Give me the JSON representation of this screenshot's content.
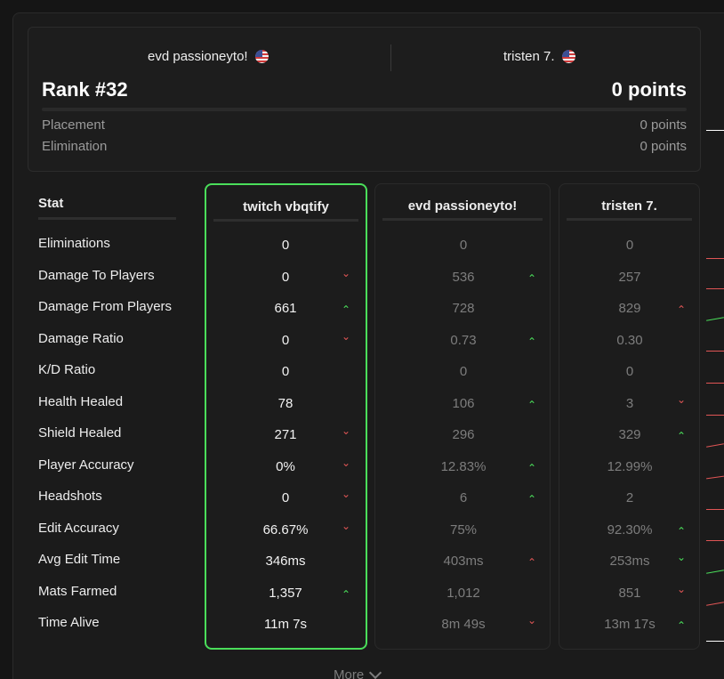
{
  "team": {
    "player1": "evd passioneyto!",
    "player2": "tristen 7.",
    "rank": "Rank #32",
    "points": "0 points",
    "placement_label": "Placement",
    "placement_value": "0 points",
    "elimination_label": "Elimination",
    "elimination_value": "0 points"
  },
  "table": {
    "stat_header": "Stat",
    "stats": [
      "Eliminations",
      "Damage To Players",
      "Damage From Players",
      "Damage Ratio",
      "K/D Ratio",
      "Health Healed",
      "Shield Healed",
      "Player Accuracy",
      "Headshots",
      "Edit Accuracy",
      "Avg Edit Time",
      "Mats Farmed",
      "Time Alive"
    ],
    "columns": [
      {
        "name": "twitch vbqtify",
        "values": [
          "0",
          "0",
          "661",
          "0",
          "0",
          "78",
          "271",
          "0%",
          "0",
          "66.67%",
          "346ms",
          "1,357",
          "11m 7s"
        ],
        "arrows": [
          "",
          "down",
          "up",
          "down",
          "",
          "",
          "down",
          "down",
          "down",
          "down",
          "",
          "up",
          ""
        ]
      },
      {
        "name": "evd passioneyto!",
        "values": [
          "0",
          "536",
          "728",
          "0.73",
          "0",
          "106",
          "296",
          "12.83%",
          "6",
          "75%",
          "403ms",
          "1,012",
          "8m 49s"
        ],
        "arrows": [
          "",
          "up",
          "",
          "up",
          "",
          "up",
          "",
          "up",
          "up",
          "",
          "up-red",
          "",
          "down"
        ]
      },
      {
        "name": "tristen 7.",
        "values": [
          "0",
          "257",
          "829",
          "0.30",
          "0",
          "3",
          "329",
          "12.99%",
          "2",
          "92.30%",
          "253ms",
          "851",
          "13m 17s"
        ],
        "arrows": [
          "",
          "",
          "up-red",
          "",
          "",
          "down",
          "up",
          "",
          "",
          "up",
          "up-down",
          "down",
          "up"
        ]
      }
    ]
  },
  "more_label": "More",
  "colors": {
    "accent_green": "#4ade5a",
    "down_red": "#e05555"
  }
}
